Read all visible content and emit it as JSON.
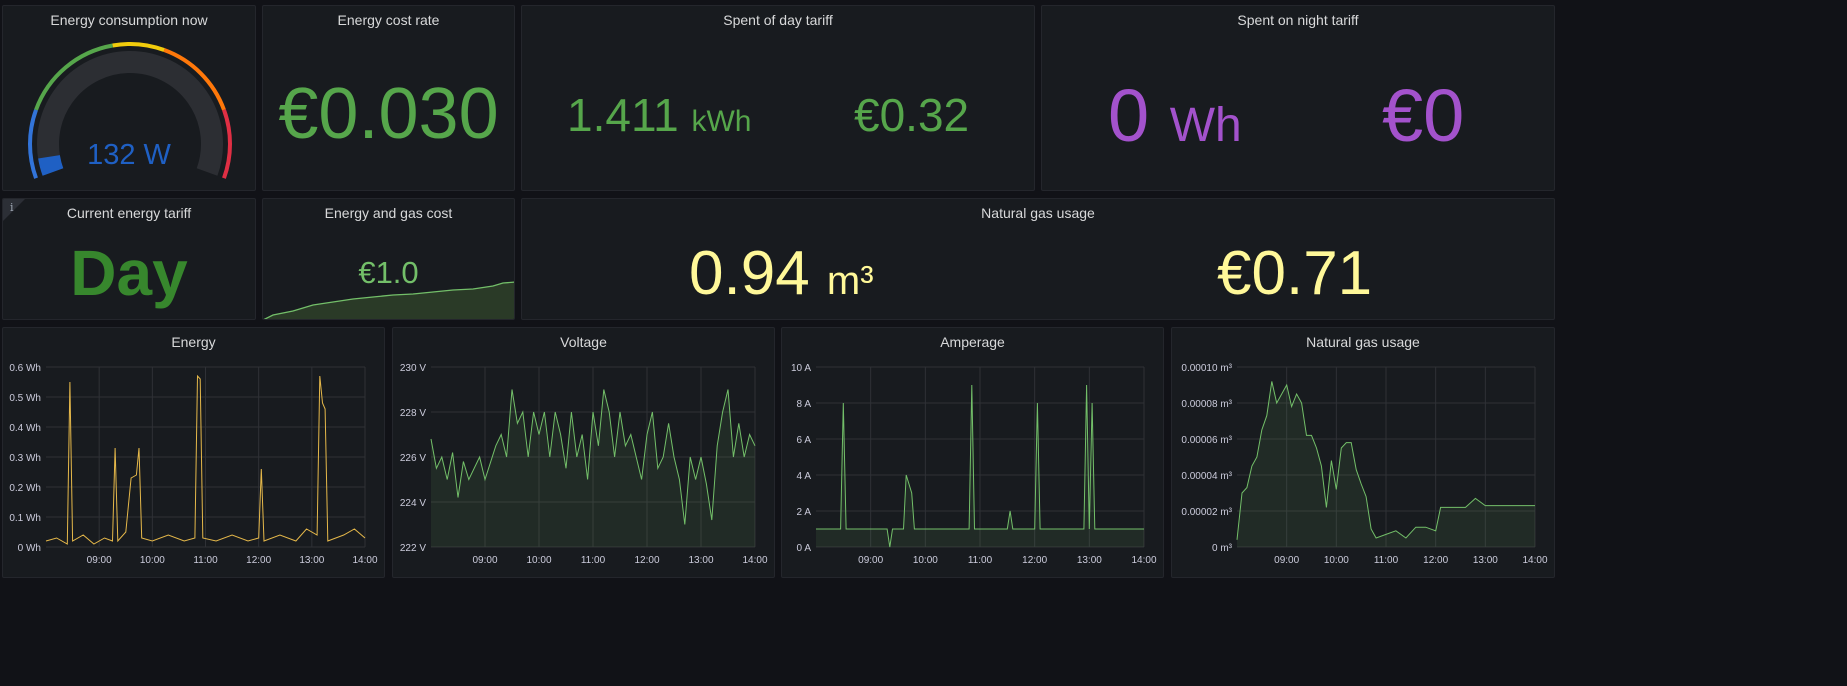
{
  "panels": {
    "energy_now": {
      "title": "Energy consumption now",
      "value": "132 W",
      "fraction": 0.05,
      "color": "#1f60c4"
    },
    "cost_rate": {
      "title": "Energy cost rate",
      "value": "€0.030",
      "color": "#56a64b"
    },
    "day_tariff": {
      "title": "Spent of day tariff",
      "energy_value": "1.411",
      "energy_unit": "kWh",
      "cost": "€0.32",
      "color": "#56a64b"
    },
    "night_tariff": {
      "title": "Spent on night tariff",
      "energy_value": "0",
      "energy_unit": "Wh",
      "cost": "€0",
      "color": "#a352cc"
    },
    "current_tariff": {
      "title": "Current energy tariff",
      "value": "Day",
      "info_icon": "i",
      "color": "#37872d"
    },
    "energy_gas_cost": {
      "title": "Energy and gas cost",
      "value": "€1.0",
      "color": "#73bf69"
    },
    "gas_usage_stat": {
      "title": "Natural gas usage",
      "volume_value": "0.94",
      "volume_unit": "m³",
      "cost": "€0.71",
      "color": "#fff899"
    }
  },
  "time_ticks": [
    "09:00",
    "10:00",
    "11:00",
    "12:00",
    "13:00",
    "14:00"
  ],
  "chart_data": [
    {
      "type": "line",
      "title": "Energy",
      "x_range": [
        "08:00",
        "14:00"
      ],
      "ylim": [
        0,
        0.6
      ],
      "y_ticks": [
        "0 Wh",
        "0.1 Wh",
        "0.2 Wh",
        "0.3 Wh",
        "0.4 Wh",
        "0.5 Wh",
        "0.6 Wh"
      ],
      "color": "#e5b84a",
      "fill": false,
      "points": [
        [
          8.0,
          0.02
        ],
        [
          8.2,
          0.03
        ],
        [
          8.4,
          0.01
        ],
        [
          8.45,
          0.55
        ],
        [
          8.5,
          0.02
        ],
        [
          8.7,
          0.04
        ],
        [
          8.9,
          0.01
        ],
        [
          9.1,
          0.03
        ],
        [
          9.25,
          0.02
        ],
        [
          9.3,
          0.33
        ],
        [
          9.35,
          0.02
        ],
        [
          9.5,
          0.05
        ],
        [
          9.6,
          0.23
        ],
        [
          9.7,
          0.24
        ],
        [
          9.75,
          0.33
        ],
        [
          9.8,
          0.03
        ],
        [
          10.0,
          0.02
        ],
        [
          10.3,
          0.04
        ],
        [
          10.6,
          0.02
        ],
        [
          10.8,
          0.03
        ],
        [
          10.85,
          0.57
        ],
        [
          10.9,
          0.56
        ],
        [
          10.95,
          0.03
        ],
        [
          11.2,
          0.02
        ],
        [
          11.5,
          0.04
        ],
        [
          11.8,
          0.02
        ],
        [
          12.0,
          0.03
        ],
        [
          12.05,
          0.26
        ],
        [
          12.1,
          0.02
        ],
        [
          12.4,
          0.04
        ],
        [
          12.7,
          0.02
        ],
        [
          12.9,
          0.06
        ],
        [
          13.1,
          0.04
        ],
        [
          13.15,
          0.57
        ],
        [
          13.2,
          0.48
        ],
        [
          13.25,
          0.46
        ],
        [
          13.3,
          0.02
        ],
        [
          13.6,
          0.04
        ],
        [
          13.8,
          0.06
        ],
        [
          14.0,
          0.03
        ]
      ]
    },
    {
      "type": "area",
      "title": "Voltage",
      "x_range": [
        "08:00",
        "14:00"
      ],
      "ylim": [
        222,
        230
      ],
      "y_ticks": [
        "222 V",
        "224 V",
        "226 V",
        "228 V",
        "230 V"
      ],
      "color": "#73bf69",
      "fill": true,
      "points": [
        [
          8.0,
          226.8
        ],
        [
          8.1,
          225.5
        ],
        [
          8.2,
          226.0
        ],
        [
          8.3,
          225.0
        ],
        [
          8.4,
          226.2
        ],
        [
          8.5,
          224.2
        ],
        [
          8.6,
          225.8
        ],
        [
          8.7,
          225.0
        ],
        [
          8.9,
          226.0
        ],
        [
          9.0,
          225.0
        ],
        [
          9.2,
          226.5
        ],
        [
          9.3,
          227.0
        ],
        [
          9.4,
          226.0
        ],
        [
          9.5,
          229.0
        ],
        [
          9.6,
          227.5
        ],
        [
          9.7,
          228.0
        ],
        [
          9.8,
          226.0
        ],
        [
          9.9,
          228.0
        ],
        [
          10.0,
          227.0
        ],
        [
          10.1,
          228.0
        ],
        [
          10.2,
          226.0
        ],
        [
          10.3,
          228.0
        ],
        [
          10.4,
          227.0
        ],
        [
          10.5,
          225.5
        ],
        [
          10.6,
          228.0
        ],
        [
          10.7,
          226.0
        ],
        [
          10.8,
          227.0
        ],
        [
          10.9,
          225.0
        ],
        [
          11.0,
          228.0
        ],
        [
          11.1,
          226.5
        ],
        [
          11.2,
          229.0
        ],
        [
          11.3,
          228.0
        ],
        [
          11.4,
          226.0
        ],
        [
          11.5,
          228.0
        ],
        [
          11.6,
          226.5
        ],
        [
          11.7,
          227.0
        ],
        [
          11.8,
          226.0
        ],
        [
          11.9,
          225.0
        ],
        [
          12.0,
          227.0
        ],
        [
          12.1,
          228.0
        ],
        [
          12.2,
          225.5
        ],
        [
          12.3,
          226.0
        ],
        [
          12.4,
          227.5
        ],
        [
          12.5,
          226.0
        ],
        [
          12.6,
          225.0
        ],
        [
          12.7,
          223.0
        ],
        [
          12.8,
          226.0
        ],
        [
          12.9,
          225.0
        ],
        [
          13.0,
          226.0
        ],
        [
          13.1,
          224.8
        ],
        [
          13.2,
          223.2
        ],
        [
          13.3,
          226.5
        ],
        [
          13.4,
          228.0
        ],
        [
          13.5,
          229.0
        ],
        [
          13.6,
          226.0
        ],
        [
          13.7,
          227.5
        ],
        [
          13.8,
          226.0
        ],
        [
          13.9,
          227.0
        ],
        [
          14.0,
          226.5
        ]
      ]
    },
    {
      "type": "area",
      "title": "Amperage",
      "x_range": [
        "08:00",
        "14:00"
      ],
      "ylim": [
        0,
        10
      ],
      "y_ticks": [
        "0 A",
        "2 A",
        "4 A",
        "6 A",
        "8 A",
        "10 A"
      ],
      "color": "#73bf69",
      "fill": true,
      "points": [
        [
          8.0,
          1.0
        ],
        [
          8.45,
          1.0
        ],
        [
          8.5,
          8.0
        ],
        [
          8.55,
          1.0
        ],
        [
          9.3,
          1.0
        ],
        [
          9.35,
          0.0
        ],
        [
          9.4,
          1.0
        ],
        [
          9.6,
          1.0
        ],
        [
          9.65,
          4.0
        ],
        [
          9.75,
          3.0
        ],
        [
          9.8,
          1.0
        ],
        [
          10.8,
          1.0
        ],
        [
          10.85,
          9.0
        ],
        [
          10.9,
          1.0
        ],
        [
          11.5,
          1.0
        ],
        [
          11.55,
          2.0
        ],
        [
          11.6,
          1.0
        ],
        [
          12.0,
          1.0
        ],
        [
          12.05,
          8.0
        ],
        [
          12.1,
          1.0
        ],
        [
          12.9,
          1.0
        ],
        [
          12.95,
          9.0
        ],
        [
          13.0,
          1.0
        ],
        [
          13.05,
          8.0
        ],
        [
          13.1,
          1.0
        ],
        [
          14.0,
          1.0
        ]
      ]
    },
    {
      "type": "area",
      "title": "Natural gas usage",
      "x_range": [
        "08:00",
        "14:00"
      ],
      "ylim": [
        0,
        0.0001
      ],
      "y_ticks": [
        "0 m³",
        "0.00002 m³",
        "0.00004 m³",
        "0.00006 m³",
        "0.00008 m³",
        "0.00010 m³"
      ],
      "color": "#73bf69",
      "fill": true,
      "points": [
        [
          8.0,
          4e-06
        ],
        [
          8.1,
          3e-05
        ],
        [
          8.2,
          3.3e-05
        ],
        [
          8.3,
          4.5e-05
        ],
        [
          8.4,
          5e-05
        ],
        [
          8.5,
          6.5e-05
        ],
        [
          8.6,
          7.3e-05
        ],
        [
          8.7,
          9.2e-05
        ],
        [
          8.8,
          8e-05
        ],
        [
          8.9,
          8.5e-05
        ],
        [
          9.0,
          9e-05
        ],
        [
          9.1,
          7.8e-05
        ],
        [
          9.2,
          8.5e-05
        ],
        [
          9.3,
          8e-05
        ],
        [
          9.4,
          6.2e-05
        ],
        [
          9.5,
          6.2e-05
        ],
        [
          9.6,
          5.5e-05
        ],
        [
          9.7,
          4.5e-05
        ],
        [
          9.8,
          2.2e-05
        ],
        [
          9.9,
          4.8e-05
        ],
        [
          10.0,
          3.2e-05
        ],
        [
          10.1,
          5.5e-05
        ],
        [
          10.2,
          5.8e-05
        ],
        [
          10.3,
          5.8e-05
        ],
        [
          10.4,
          4.3e-05
        ],
        [
          10.5,
          3.5e-05
        ],
        [
          10.6,
          2.8e-05
        ],
        [
          10.7,
          1e-05
        ],
        [
          10.8,
          5e-06
        ],
        [
          11.0,
          7e-06
        ],
        [
          11.2,
          9e-06
        ],
        [
          11.4,
          5e-06
        ],
        [
          11.6,
          1.1e-05
        ],
        [
          11.8,
          1.1e-05
        ],
        [
          12.0,
          9e-06
        ],
        [
          12.1,
          2.2e-05
        ],
        [
          12.4,
          2.2e-05
        ],
        [
          12.6,
          2.2e-05
        ],
        [
          12.8,
          2.7e-05
        ],
        [
          13.0,
          2.3e-05
        ],
        [
          14.0,
          2.3e-05
        ]
      ]
    }
  ]
}
